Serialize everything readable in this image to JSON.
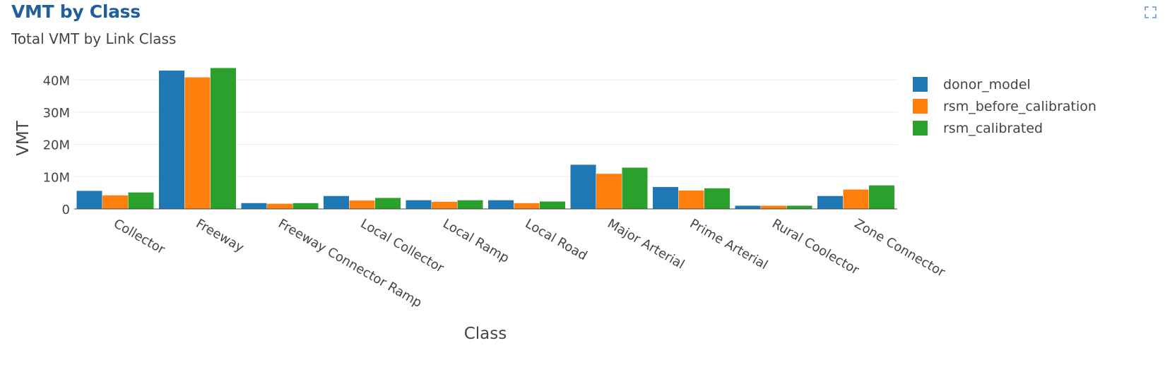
{
  "card": {
    "title": "VMT by Class",
    "subtitle": "Total VMT by Link Class",
    "expand_icon": "expand-icon"
  },
  "chart_data": {
    "type": "bar",
    "xlabel": "Class",
    "ylabel": "VMT",
    "ylim": [
      0,
      44000000
    ],
    "yticks": [
      {
        "value": 0,
        "label": "0"
      },
      {
        "value": 10000000,
        "label": "10M"
      },
      {
        "value": 20000000,
        "label": "20M"
      },
      {
        "value": 30000000,
        "label": "30M"
      },
      {
        "value": 40000000,
        "label": "40M"
      }
    ],
    "grid": true,
    "legend_position": "right",
    "categories": [
      "Collector",
      "Freeway",
      "Freeway Connector Ramp",
      "Local Collector",
      "Local Ramp",
      "Local Road",
      "Major Arterial",
      "Prime Arterial",
      "Rural Coolector",
      "Zone Connector"
    ],
    "series": [
      {
        "name": "donor_model",
        "color": "#1f77b4",
        "values": [
          5600000,
          42900000,
          1800000,
          4000000,
          2700000,
          2700000,
          13700000,
          6800000,
          1000000,
          4000000
        ]
      },
      {
        "name": "rsm_before_calibration",
        "color": "#ff7f0e",
        "values": [
          4200000,
          40800000,
          1600000,
          2600000,
          2200000,
          1800000,
          10900000,
          5700000,
          1000000,
          6000000
        ]
      },
      {
        "name": "rsm_calibrated",
        "color": "#2ca02c",
        "values": [
          5100000,
          43700000,
          1800000,
          3400000,
          2700000,
          2300000,
          12800000,
          6400000,
          1000000,
          7300000
        ]
      }
    ]
  }
}
